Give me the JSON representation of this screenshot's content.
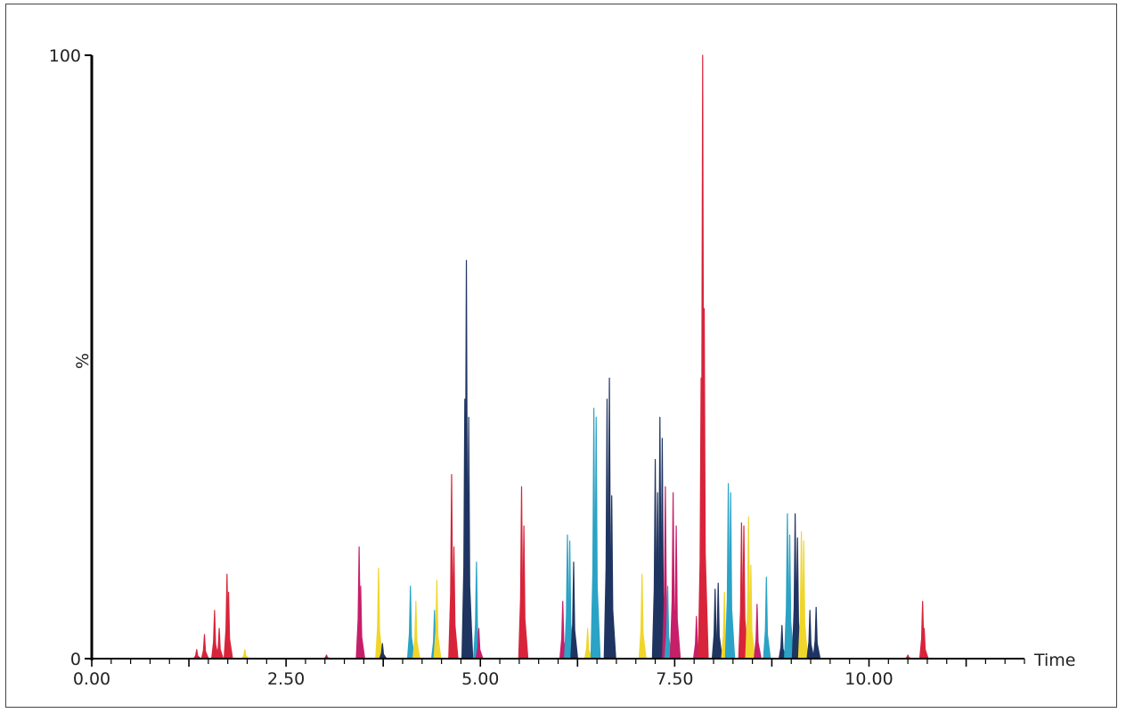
{
  "chart_data": {
    "type": "line",
    "title": "",
    "xlabel": "Time",
    "ylabel": "%",
    "xlim": [
      0,
      12.0
    ],
    "ylim": [
      0,
      100
    ],
    "x_ticks": [
      "0.00",
      "2.50",
      "5.00",
      "7.50",
      "10.00"
    ],
    "y_ticks": [
      "0",
      "100"
    ],
    "grid": false,
    "colors": {
      "red": "#d8243a",
      "crimson": "#c61f6a",
      "navy": "#1f3461",
      "cyan": "#2aa3c6",
      "yellow": "#f0d62b"
    },
    "peaks": [
      {
        "x": 1.35,
        "y": 1.5,
        "color": "red"
      },
      {
        "x": 1.45,
        "y": 4.0,
        "color": "red"
      },
      {
        "x": 1.58,
        "y": 8.0,
        "color": "red"
      },
      {
        "x": 1.64,
        "y": 5.0,
        "color": "red"
      },
      {
        "x": 1.74,
        "y": 14.0,
        "color": "red"
      },
      {
        "x": 1.76,
        "y": 11.0,
        "color": "red"
      },
      {
        "x": 1.97,
        "y": 1.5,
        "color": "yellow"
      },
      {
        "x": 3.02,
        "y": 0.6,
        "color": "crimson"
      },
      {
        "x": 3.44,
        "y": 18.5,
        "color": "crimson"
      },
      {
        "x": 3.46,
        "y": 12.0,
        "color": "crimson"
      },
      {
        "x": 3.69,
        "y": 15.0,
        "color": "yellow"
      },
      {
        "x": 3.74,
        "y": 2.5,
        "color": "navy"
      },
      {
        "x": 4.1,
        "y": 12.0,
        "color": "cyan"
      },
      {
        "x": 4.17,
        "y": 9.5,
        "color": "yellow"
      },
      {
        "x": 4.41,
        "y": 8.0,
        "color": "cyan"
      },
      {
        "x": 4.44,
        "y": 13.0,
        "color": "yellow"
      },
      {
        "x": 4.63,
        "y": 30.5,
        "color": "red"
      },
      {
        "x": 4.66,
        "y": 18.5,
        "color": "red"
      },
      {
        "x": 4.8,
        "y": 43.0,
        "color": "navy"
      },
      {
        "x": 4.82,
        "y": 66.0,
        "color": "navy"
      },
      {
        "x": 4.85,
        "y": 40.0,
        "color": "navy"
      },
      {
        "x": 4.95,
        "y": 16.0,
        "color": "cyan"
      },
      {
        "x": 4.98,
        "y": 5.0,
        "color": "crimson"
      },
      {
        "x": 5.53,
        "y": 28.5,
        "color": "red"
      },
      {
        "x": 5.56,
        "y": 22.0,
        "color": "red"
      },
      {
        "x": 6.06,
        "y": 9.5,
        "color": "crimson"
      },
      {
        "x": 6.12,
        "y": 20.5,
        "color": "cyan"
      },
      {
        "x": 6.15,
        "y": 19.5,
        "color": "cyan"
      },
      {
        "x": 6.2,
        "y": 16.0,
        "color": "navy"
      },
      {
        "x": 6.38,
        "y": 5.0,
        "color": "yellow"
      },
      {
        "x": 6.46,
        "y": 41.5,
        "color": "cyan"
      },
      {
        "x": 6.49,
        "y": 40.0,
        "color": "cyan"
      },
      {
        "x": 6.63,
        "y": 43.0,
        "color": "navy"
      },
      {
        "x": 6.66,
        "y": 46.5,
        "color": "navy"
      },
      {
        "x": 6.69,
        "y": 27.0,
        "color": "navy"
      },
      {
        "x": 7.08,
        "y": 14.0,
        "color": "yellow"
      },
      {
        "x": 7.25,
        "y": 33.0,
        "color": "navy"
      },
      {
        "x": 7.28,
        "y": 27.5,
        "color": "navy"
      },
      {
        "x": 7.31,
        "y": 40.0,
        "color": "navy"
      },
      {
        "x": 7.34,
        "y": 36.5,
        "color": "navy"
      },
      {
        "x": 7.38,
        "y": 28.5,
        "color": "crimson"
      },
      {
        "x": 7.41,
        "y": 12.0,
        "color": "cyan"
      },
      {
        "x": 7.48,
        "y": 27.5,
        "color": "crimson"
      },
      {
        "x": 7.52,
        "y": 22.0,
        "color": "crimson"
      },
      {
        "x": 7.78,
        "y": 7.0,
        "color": "crimson"
      },
      {
        "x": 7.84,
        "y": 46.5,
        "color": "red"
      },
      {
        "x": 7.86,
        "y": 100.0,
        "color": "red"
      },
      {
        "x": 7.88,
        "y": 58.0,
        "color": "red"
      },
      {
        "x": 8.02,
        "y": 11.5,
        "color": "navy"
      },
      {
        "x": 8.06,
        "y": 12.5,
        "color": "navy"
      },
      {
        "x": 8.14,
        "y": 11.0,
        "color": "yellow"
      },
      {
        "x": 8.19,
        "y": 29.0,
        "color": "cyan"
      },
      {
        "x": 8.22,
        "y": 27.5,
        "color": "cyan"
      },
      {
        "x": 8.36,
        "y": 22.5,
        "color": "red"
      },
      {
        "x": 8.39,
        "y": 22.0,
        "color": "red"
      },
      {
        "x": 8.45,
        "y": 23.5,
        "color": "yellow"
      },
      {
        "x": 8.48,
        "y": 15.5,
        "color": "yellow"
      },
      {
        "x": 8.56,
        "y": 9.0,
        "color": "crimson"
      },
      {
        "x": 8.68,
        "y": 13.5,
        "color": "cyan"
      },
      {
        "x": 8.88,
        "y": 5.5,
        "color": "navy"
      },
      {
        "x": 8.95,
        "y": 24.0,
        "color": "cyan"
      },
      {
        "x": 8.98,
        "y": 20.5,
        "color": "cyan"
      },
      {
        "x": 9.05,
        "y": 24.0,
        "color": "navy"
      },
      {
        "x": 9.08,
        "y": 20.0,
        "color": "navy"
      },
      {
        "x": 9.13,
        "y": 21.0,
        "color": "yellow"
      },
      {
        "x": 9.16,
        "y": 19.5,
        "color": "yellow"
      },
      {
        "x": 9.24,
        "y": 8.0,
        "color": "navy"
      },
      {
        "x": 9.32,
        "y": 8.5,
        "color": "navy"
      },
      {
        "x": 10.5,
        "y": 0.6,
        "color": "red"
      },
      {
        "x": 10.69,
        "y": 9.5,
        "color": "red"
      },
      {
        "x": 10.71,
        "y": 5.0,
        "color": "red"
      }
    ]
  }
}
